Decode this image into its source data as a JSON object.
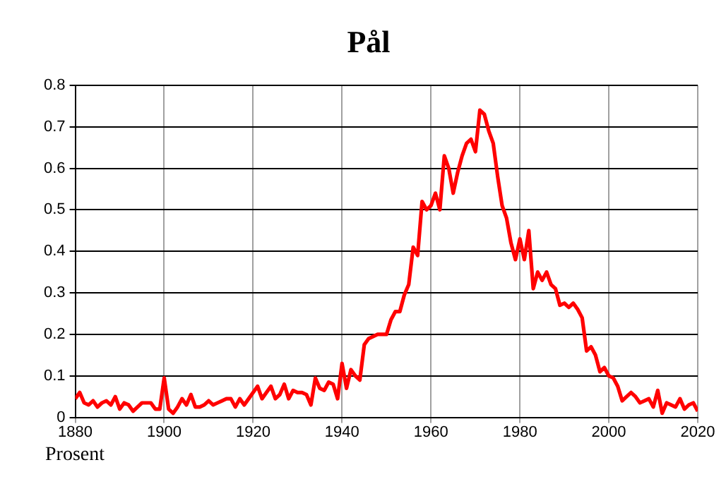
{
  "chart_data": {
    "type": "line",
    "title": "Pål",
    "ylabel": "Prosent",
    "x": [
      1880,
      1881,
      1882,
      1883,
      1884,
      1885,
      1886,
      1887,
      1888,
      1889,
      1890,
      1891,
      1892,
      1893,
      1894,
      1895,
      1896,
      1897,
      1898,
      1899,
      1900,
      1901,
      1902,
      1903,
      1904,
      1905,
      1906,
      1907,
      1908,
      1909,
      1910,
      1911,
      1912,
      1913,
      1914,
      1915,
      1916,
      1917,
      1918,
      1919,
      1920,
      1921,
      1922,
      1923,
      1924,
      1925,
      1926,
      1927,
      1928,
      1929,
      1930,
      1931,
      1932,
      1933,
      1934,
      1935,
      1936,
      1937,
      1938,
      1939,
      1940,
      1941,
      1942,
      1943,
      1944,
      1945,
      1946,
      1947,
      1948,
      1949,
      1950,
      1951,
      1952,
      1953,
      1954,
      1955,
      1956,
      1957,
      1958,
      1959,
      1960,
      1961,
      1962,
      1963,
      1964,
      1965,
      1966,
      1967,
      1968,
      1969,
      1970,
      1971,
      1972,
      1973,
      1974,
      1975,
      1976,
      1977,
      1978,
      1979,
      1980,
      1981,
      1982,
      1983,
      1984,
      1985,
      1986,
      1987,
      1988,
      1989,
      1990,
      1991,
      1992,
      1993,
      1994,
      1995,
      1996,
      1997,
      1998,
      1999,
      2000,
      2001,
      2002,
      2003,
      2004,
      2005,
      2006,
      2007,
      2008,
      2009,
      2010,
      2011,
      2012,
      2013,
      2014,
      2015,
      2016,
      2017,
      2018,
      2019,
      2020
    ],
    "series": [
      {
        "color": "#ff0000",
        "values": [
          0.045,
          0.06,
          0.035,
          0.03,
          0.04,
          0.025,
          0.035,
          0.04,
          0.03,
          0.05,
          0.02,
          0.035,
          0.03,
          0.015,
          0.025,
          0.035,
          0.035,
          0.035,
          0.02,
          0.02,
          0.095,
          0.02,
          0.01,
          0.025,
          0.045,
          0.03,
          0.055,
          0.025,
          0.025,
          0.03,
          0.04,
          0.03,
          0.035,
          0.04,
          0.045,
          0.045,
          0.025,
          0.045,
          0.03,
          0.045,
          0.06,
          0.075,
          0.045,
          0.06,
          0.075,
          0.045,
          0.055,
          0.08,
          0.045,
          0.065,
          0.06,
          0.06,
          0.055,
          0.03,
          0.095,
          0.07,
          0.065,
          0.085,
          0.08,
          0.045,
          0.13,
          0.07,
          0.115,
          0.1,
          0.09,
          0.175,
          0.19,
          0.195,
          0.2,
          0.2,
          0.2,
          0.235,
          0.255,
          0.255,
          0.295,
          0.32,
          0.41,
          0.39,
          0.52,
          0.5,
          0.51,
          0.54,
          0.5,
          0.63,
          0.6,
          0.54,
          0.59,
          0.63,
          0.66,
          0.67,
          0.64,
          0.74,
          0.73,
          0.69,
          0.66,
          0.58,
          0.51,
          0.48,
          0.42,
          0.38,
          0.43,
          0.38,
          0.45,
          0.31,
          0.35,
          0.33,
          0.35,
          0.32,
          0.31,
          0.27,
          0.275,
          0.265,
          0.275,
          0.26,
          0.24,
          0.16,
          0.17,
          0.15,
          0.11,
          0.12,
          0.1,
          0.095,
          0.075,
          0.04,
          0.05,
          0.06,
          0.05,
          0.035,
          0.04,
          0.045,
          0.025,
          0.065,
          0.01,
          0.035,
          0.03,
          0.025,
          0.045,
          0.02,
          0.03,
          0.035,
          0.015
        ]
      }
    ],
    "xlim": [
      1880,
      2020
    ],
    "xticks": [
      1880,
      1900,
      1920,
      1940,
      1960,
      1980,
      2000,
      2020
    ],
    "ylim": [
      0,
      0.8
    ],
    "yticks": [
      0,
      0.1,
      0.2,
      0.3,
      0.4,
      0.5,
      0.6,
      0.7,
      0.8
    ],
    "grid": true,
    "legend": false,
    "marker": "none",
    "line_style": "solid"
  }
}
